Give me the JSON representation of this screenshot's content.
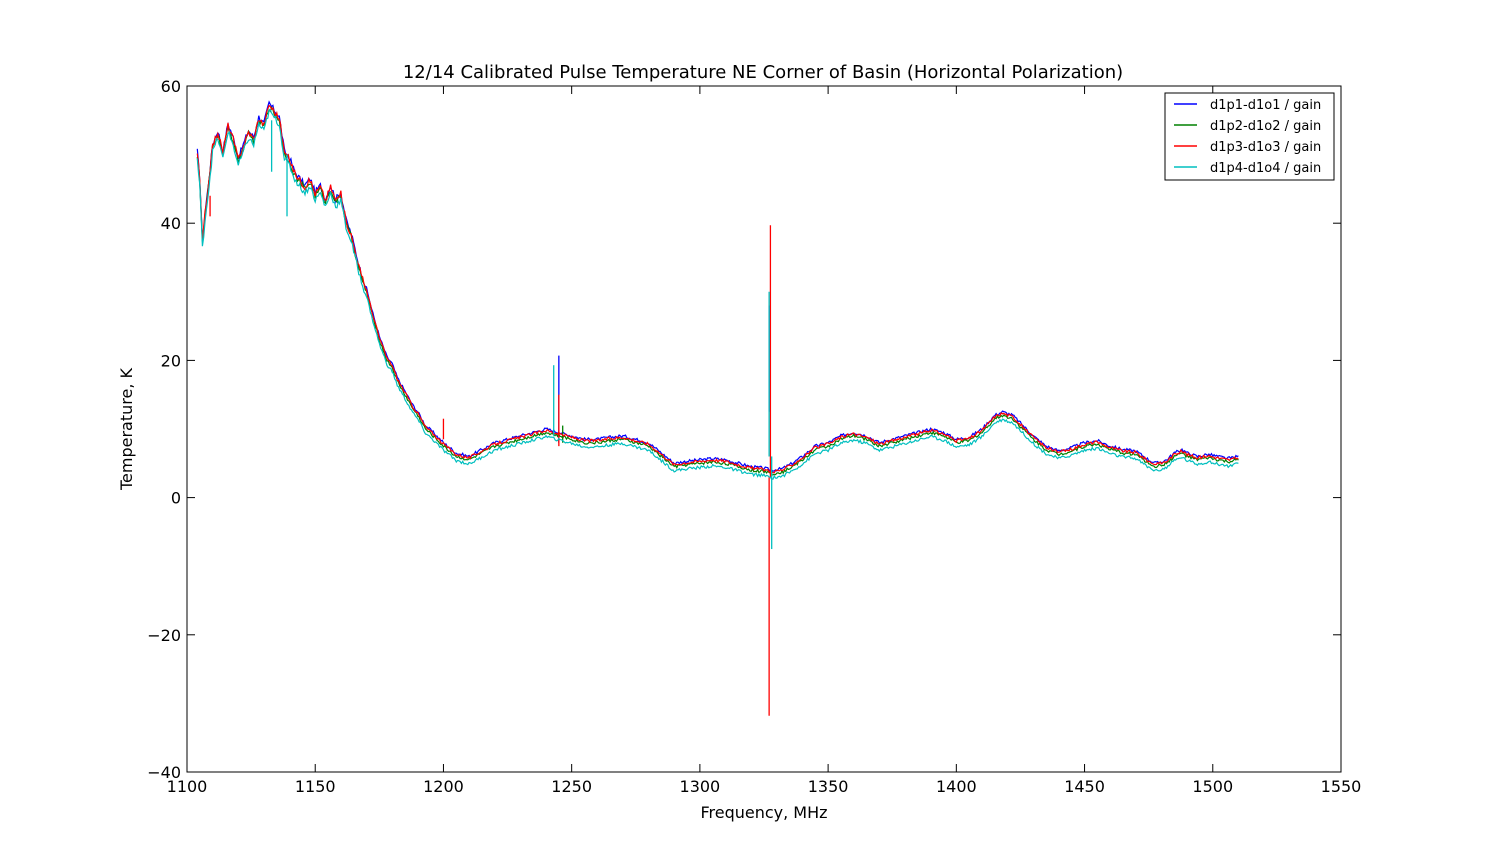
{
  "chart_data": {
    "type": "line",
    "title": "12/14 Calibrated Pulse Temperature NE Corner of Basin (Horizontal Polarization)",
    "xlabel": "Frequency, MHz",
    "ylabel": "Temperature, K",
    "xlim": [
      1100,
      1550
    ],
    "ylim": [
      -40,
      60
    ],
    "xticks": [
      1100,
      1150,
      1200,
      1250,
      1300,
      1350,
      1400,
      1450,
      1500,
      1550
    ],
    "yticks": [
      -40,
      -20,
      0,
      20,
      40,
      60
    ],
    "xtick_labels": [
      "1100",
      "1150",
      "1200",
      "1250",
      "1300",
      "1350",
      "1400",
      "1450",
      "1500",
      "1550"
    ],
    "ytick_labels": [
      "−40",
      "−20",
      "0",
      "20",
      "40",
      "60"
    ],
    "grid": false,
    "legend_position": "top-right",
    "base_curve": {
      "x": [
        1104,
        1105,
        1106,
        1107,
        1108,
        1110,
        1112,
        1114,
        1116,
        1118,
        1120,
        1122,
        1124,
        1126,
        1128,
        1130,
        1132,
        1134,
        1136,
        1138,
        1140,
        1142,
        1144,
        1146,
        1148,
        1150,
        1152,
        1154,
        1156,
        1158,
        1160,
        1162,
        1164,
        1166,
        1168,
        1170,
        1172,
        1175,
        1178,
        1180,
        1182,
        1185,
        1188,
        1190,
        1193,
        1196,
        1200,
        1205,
        1210,
        1215,
        1220,
        1225,
        1230,
        1235,
        1240,
        1245,
        1250,
        1255,
        1260,
        1265,
        1270,
        1275,
        1280,
        1285,
        1290,
        1295,
        1300,
        1305,
        1310,
        1315,
        1320,
        1325,
        1328,
        1332,
        1336,
        1340,
        1345,
        1350,
        1355,
        1360,
        1365,
        1370,
        1375,
        1380,
        1385,
        1390,
        1395,
        1400,
        1405,
        1410,
        1415,
        1418,
        1422,
        1426,
        1430,
        1435,
        1440,
        1445,
        1450,
        1455,
        1460,
        1465,
        1470,
        1475,
        1478,
        1482,
        1485,
        1488,
        1490,
        1494,
        1498,
        1502,
        1506,
        1510
      ],
      "y": [
        50,
        46,
        37,
        41,
        44,
        51,
        53,
        50,
        54,
        52,
        49,
        51,
        53,
        52,
        55,
        54,
        57,
        56,
        55,
        50,
        49,
        47,
        46,
        45,
        46,
        44,
        45,
        43,
        45,
        43,
        44,
        40,
        38,
        35,
        32,
        30,
        27,
        23,
        20,
        19,
        17,
        15,
        13,
        12,
        10,
        9,
        7.5,
        6,
        5.5,
        6.5,
        7.5,
        8,
        8.5,
        9,
        9.5,
        9,
        8.5,
        8,
        8,
        8.3,
        8.5,
        8,
        7.5,
        6,
        4.5,
        4.8,
        5,
        5.2,
        5,
        4.5,
        4,
        3.8,
        3.5,
        3.7,
        4.5,
        5.5,
        7,
        7.5,
        8.5,
        9,
        8.5,
        7.5,
        8,
        8.5,
        9,
        9.5,
        9,
        8,
        8.3,
        9.5,
        11.5,
        12,
        11.5,
        10,
        8.5,
        7,
        6.3,
        6.8,
        7.5,
        7.8,
        7,
        6.5,
        6.3,
        5,
        4.5,
        5,
        6,
        6.5,
        6,
        5.5,
        5.8,
        5.5,
        5.2,
        5.5
      ]
    },
    "series": [
      {
        "name": "d1p1-d1o1 / gain",
        "color": "#0000ff",
        "offset": 0.5,
        "spikes": [
          {
            "x": 1245,
            "y_min": 8,
            "y_max": 20.7
          },
          {
            "x": 1327,
            "y_min": 12.5,
            "y_max": 28
          }
        ]
      },
      {
        "name": "d1p2-d1o2 / gain",
        "color": "#008000",
        "offset": 0,
        "spikes": [
          {
            "x": 1246.5,
            "y_min": 8,
            "y_max": 10.5
          }
        ]
      },
      {
        "name": "d1p3-d1o3 / gain",
        "color": "#ff0000",
        "offset": 0.3,
        "spikes": [
          {
            "x": 1200,
            "y_min": 8.5,
            "y_max": 11.5
          },
          {
            "x": 1245,
            "y_min": 7.5,
            "y_max": 15
          },
          {
            "x": 1327,
            "y_min": -31.8,
            "y_max": 3
          },
          {
            "x": 1327.5,
            "y_min": 3,
            "y_max": 39.7
          },
          {
            "x": 1109,
            "y_min": 41,
            "y_max": 44
          }
        ]
      },
      {
        "name": "d1p4-d1o4 / gain",
        "color": "#00bfbf",
        "offset": -0.6,
        "spikes": [
          {
            "x": 1133,
            "y_min": 47.5,
            "y_max": 55
          },
          {
            "x": 1139,
            "y_min": 41,
            "y_max": 50
          },
          {
            "x": 1243,
            "y_min": 9,
            "y_max": 19.3
          },
          {
            "x": 1327,
            "y_min": 6,
            "y_max": 30
          },
          {
            "x": 1328,
            "y_min": -7.5,
            "y_max": 6
          }
        ]
      }
    ]
  }
}
